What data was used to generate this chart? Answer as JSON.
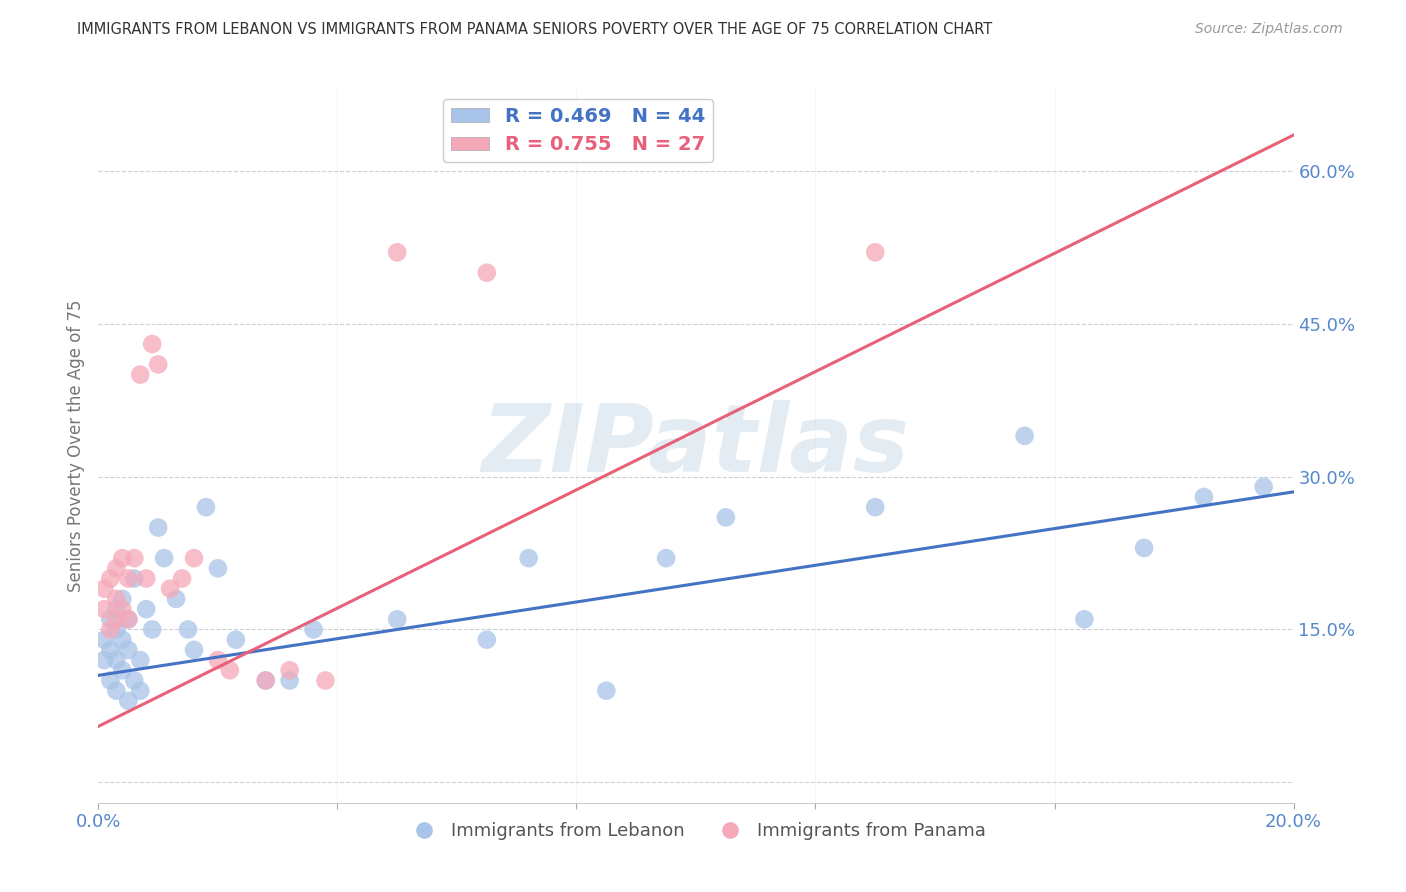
{
  "title": "IMMIGRANTS FROM LEBANON VS IMMIGRANTS FROM PANAMA SENIORS POVERTY OVER THE AGE OF 75 CORRELATION CHART",
  "source": "Source: ZipAtlas.com",
  "ylabel_left": "Seniors Poverty Over the Age of 75",
  "xlim": [
    0.0,
    0.2
  ],
  "ylim": [
    -0.02,
    0.68
  ],
  "yticks": [
    0.0,
    0.15,
    0.3,
    0.45,
    0.6
  ],
  "xticks": [
    0.0,
    0.04,
    0.08,
    0.12,
    0.16,
    0.2
  ],
  "lebanon_color": "#a8c4e8",
  "panama_color": "#f5a8b8",
  "lebanon_line_color": "#4472c4",
  "panama_line_color": "#e8607a",
  "watermark_text": "ZIPatlas",
  "background_color": "#ffffff",
  "grid_color": "#d0d0d0",
  "title_color": "#333333",
  "axis_label_color": "#5588cc",
  "lebanon_x": [
    0.001,
    0.001,
    0.002,
    0.002,
    0.002,
    0.003,
    0.003,
    0.003,
    0.003,
    0.004,
    0.004,
    0.004,
    0.005,
    0.005,
    0.005,
    0.006,
    0.006,
    0.007,
    0.007,
    0.008,
    0.009,
    0.01,
    0.011,
    0.013,
    0.015,
    0.016,
    0.018,
    0.02,
    0.023,
    0.028,
    0.032,
    0.036,
    0.05,
    0.065,
    0.072,
    0.085,
    0.095,
    0.105,
    0.13,
    0.155,
    0.165,
    0.175,
    0.185,
    0.195
  ],
  "lebanon_y": [
    0.12,
    0.14,
    0.1,
    0.13,
    0.16,
    0.09,
    0.12,
    0.15,
    0.17,
    0.11,
    0.14,
    0.18,
    0.08,
    0.13,
    0.16,
    0.1,
    0.2,
    0.12,
    0.09,
    0.17,
    0.15,
    0.25,
    0.22,
    0.18,
    0.15,
    0.13,
    0.27,
    0.21,
    0.14,
    0.1,
    0.1,
    0.15,
    0.16,
    0.14,
    0.22,
    0.09,
    0.22,
    0.26,
    0.27,
    0.34,
    0.16,
    0.23,
    0.28,
    0.29
  ],
  "panama_x": [
    0.001,
    0.001,
    0.002,
    0.002,
    0.003,
    0.003,
    0.003,
    0.004,
    0.004,
    0.005,
    0.005,
    0.006,
    0.007,
    0.008,
    0.009,
    0.01,
    0.012,
    0.014,
    0.016,
    0.02,
    0.022,
    0.028,
    0.032,
    0.038,
    0.05,
    0.065,
    0.13
  ],
  "panama_y": [
    0.17,
    0.19,
    0.15,
    0.2,
    0.16,
    0.18,
    0.21,
    0.17,
    0.22,
    0.16,
    0.2,
    0.22,
    0.4,
    0.2,
    0.43,
    0.41,
    0.19,
    0.2,
    0.22,
    0.12,
    0.11,
    0.1,
    0.11,
    0.1,
    0.52,
    0.5,
    0.52
  ],
  "lebanon_line_x": [
    0.0,
    0.2
  ],
  "lebanon_line_y": [
    0.105,
    0.285
  ],
  "panama_line_x": [
    0.0,
    0.2
  ],
  "panama_line_y": [
    0.055,
    0.635
  ]
}
